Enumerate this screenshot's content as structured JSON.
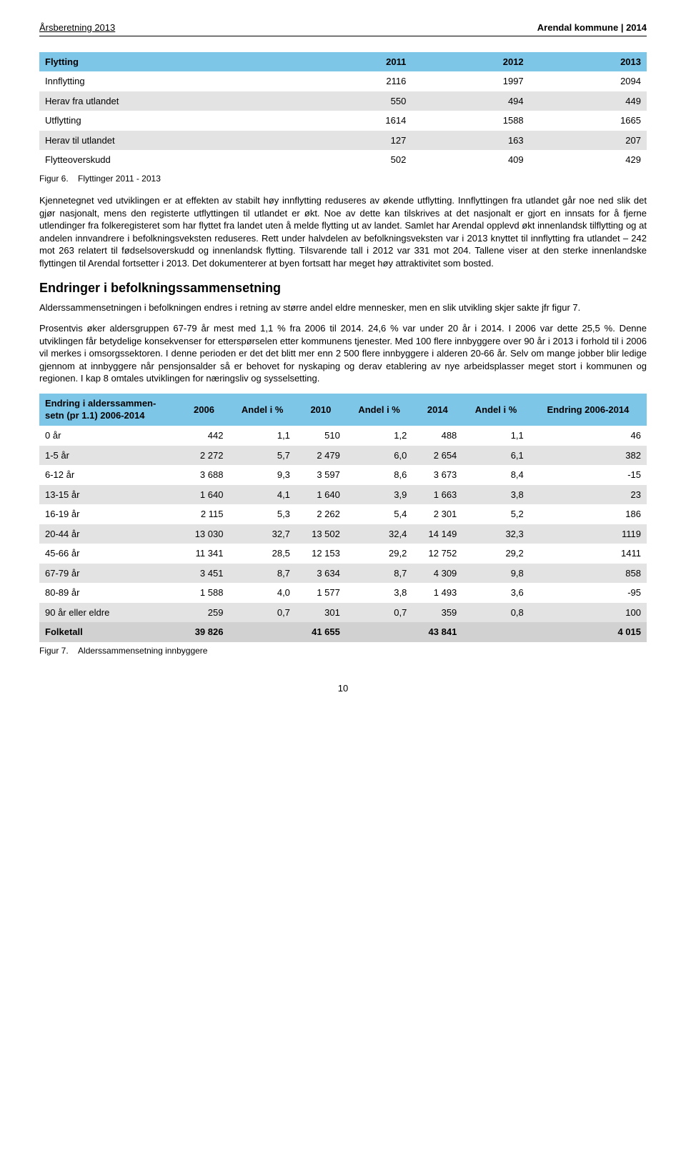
{
  "header": {
    "left": "Årsberetning  2013",
    "right": "Arendal kommune | 2014"
  },
  "t1": {
    "columns": [
      "Flytting",
      "2011",
      "2012",
      "2013"
    ],
    "rows": [
      {
        "shade": false,
        "c": [
          "Innflytting",
          "2116",
          "1997",
          "2094"
        ]
      },
      {
        "shade": true,
        "c": [
          "Herav fra utlandet",
          "550",
          "494",
          "449"
        ]
      },
      {
        "shade": false,
        "c": [
          "Utflytting",
          "1614",
          "1588",
          "1665"
        ]
      },
      {
        "shade": true,
        "c": [
          "Herav til utlandet",
          "127",
          "163",
          "207"
        ]
      },
      {
        "shade": false,
        "c": [
          "Flytteoverskudd",
          "502",
          "409",
          "429"
        ]
      }
    ],
    "colors": {
      "header_bg": "#7ec6e8",
      "shade_bg": "#e3e3e3"
    }
  },
  "fig6": {
    "label": "Figur 6.",
    "text": "Flyttinger 2011 - 2013"
  },
  "para1": "Kjennetegnet ved utviklingen er at effekten av stabilt høy innflytting reduseres av økende utflytting. Innflyttingen fra utlandet går noe ned slik det gjør nasjonalt, mens den registerte utflyttingen til utlandet er økt. Noe av dette kan tilskrives at det nasjonalt er gjort en innsats for å fjerne utlendinger fra folkeregisteret som har flyttet fra landet uten å melde flytting ut av landet. Samlet har Arendal opplevd økt innenlandsk tilflytting og at andelen innvandrere i befolkningsveksten reduseres. Rett under halvdelen av befolkningsveksten var i 2013 knyttet til innflytting fra utlandet – 242 mot 263 relatert til fødselsoverskudd og innenlandsk flytting. Tilsvarende tall i 2012 var 331 mot 204. Tallene viser at den sterke innenlandske flyttingen til Arendal fortsetter i 2013. Det dokumenterer at byen fortsatt har meget høy attraktivitet som bosted.",
  "section_heading": "Endringer i befolkningssammensetning",
  "para2": "Alderssammensetningen i befolkningen endres i retning av større andel eldre mennesker, men en slik utvikling skjer sakte jfr figur 7.",
  "para3": "Prosentvis øker aldersgruppen 67-79 år mest med 1,1 % fra 2006 til 2014. 24,6 % var under 20 år i 2014. I 2006 var dette 25,5 %. Denne utviklingen får betydelige konsekvenser for etterspørselen etter kommunens tjenester. Med 100 flere innbyggere over 90 år i 2013 i forhold til i 2006 vil merkes i omsorgssektoren. I denne perioden er det det blitt mer enn 2 500 flere innbyggere i alderen 20-66 år. Selv om mange jobber blir ledige gjennom at innbyggere når pensjonsalder så er behovet for nyskaping og derav etablering av nye arbeidsplasser meget stort i kommunen og regionen. I kap 8 omtales utviklingen for næringsliv og sysselsetting.",
  "t2": {
    "columns": [
      "Endring i alderssammen-setn (pr 1.1) 2006-2014",
      "2006",
      "Andel i %",
      "2010",
      "Andel i %",
      "2014",
      "Andel i %",
      "Endring 2006-2014"
    ],
    "rows": [
      {
        "shade": false,
        "c": [
          "0 år",
          "442",
          "1,1",
          "510",
          "1,2",
          "488",
          "1,1",
          "46"
        ]
      },
      {
        "shade": true,
        "c": [
          "1-5 år",
          "2 272",
          "5,7",
          "2 479",
          "6,0",
          "2 654",
          "6,1",
          "382"
        ]
      },
      {
        "shade": false,
        "c": [
          "6-12 år",
          "3 688",
          "9,3",
          "3 597",
          "8,6",
          "3 673",
          "8,4",
          "-15"
        ]
      },
      {
        "shade": true,
        "c": [
          "13-15 år",
          "1 640",
          "4,1",
          "1 640",
          "3,9",
          "1 663",
          "3,8",
          "23"
        ]
      },
      {
        "shade": false,
        "c": [
          "16-19 år",
          "2 115",
          "5,3",
          "2 262",
          "5,4",
          "2 301",
          "5,2",
          "186"
        ]
      },
      {
        "shade": true,
        "c": [
          "20-44 år",
          "13 030",
          "32,7",
          "13 502",
          "32,4",
          "14 149",
          "32,3",
          "1119"
        ]
      },
      {
        "shade": false,
        "c": [
          "45-66 år",
          "11 341",
          "28,5",
          "12 153",
          "29,2",
          "12 752",
          "29,2",
          "1411"
        ]
      },
      {
        "shade": true,
        "c": [
          "67-79 år",
          "3 451",
          "8,7",
          "3 634",
          "8,7",
          "4 309",
          "9,8",
          "858"
        ]
      },
      {
        "shade": false,
        "c": [
          "80-89 år",
          "1 588",
          "4,0",
          "1 577",
          "3,8",
          "1 493",
          "3,6",
          "-95"
        ]
      },
      {
        "shade": true,
        "c": [
          "90 år eller eldre",
          "259",
          "0,7",
          "301",
          "0,7",
          "359",
          "0,8",
          "100"
        ]
      }
    ],
    "total": {
      "c": [
        "Folketall",
        "39 826",
        "",
        "41 655",
        "",
        "43 841",
        "",
        "4 015"
      ]
    },
    "colors": {
      "header_bg": "#7ec6e8",
      "shade_bg": "#e3e3e3",
      "total_bg": "#d1d1d1"
    }
  },
  "fig7": {
    "label": "Figur 7.",
    "text": "Alderssammensetning innbyggere"
  },
  "page_number": "10"
}
